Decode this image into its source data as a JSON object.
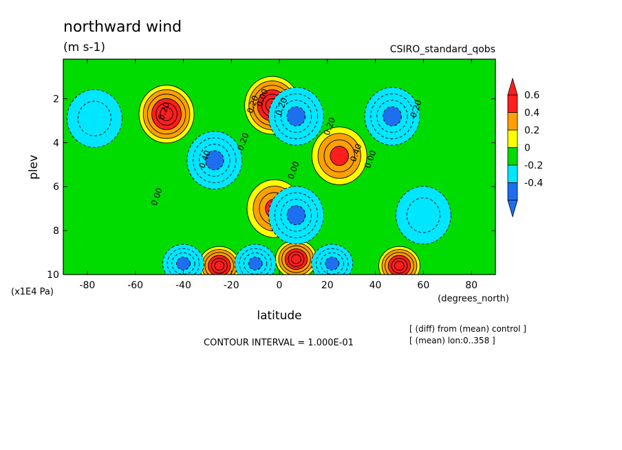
{
  "chart_data": {
    "type": "contour",
    "title": "northward wind",
    "units": "(m s-1)",
    "dataset_label": "CSIRO_standard_qobs",
    "xlabel": "latitude",
    "x_units": "(degrees_north)",
    "ylabel": "plev",
    "y_units": "(x1E4 Pa)",
    "xlim": [
      -90,
      90
    ],
    "ylim": [
      10,
      0.2
    ],
    "x_ticks": [
      -80,
      -60,
      -40,
      -20,
      0,
      20,
      40,
      60,
      80
    ],
    "y_ticks": [
      2,
      4,
      6,
      8,
      10
    ],
    "contour_interval_text": "CONTOUR INTERVAL = 1.000E-01",
    "footnotes": [
      "[ (diff) from (mean) control ]",
      "[ (mean) lon:0..358 ]"
    ],
    "colorbar": {
      "labels": [
        "0.6",
        "0.4",
        "0.2",
        "0",
        "-0.2",
        "-0.4"
      ],
      "levels": [
        -0.4,
        -0.2,
        0,
        0.2,
        0.4,
        0.6
      ],
      "colors": [
        "#1e6ef0",
        "#00e6ff",
        "#00dc00",
        "#ffff00",
        "#ffa000",
        "#ff1e1e"
      ]
    },
    "contour_labels": [
      {
        "text": "0.20",
        "lat": -47,
        "plev": 2.6
      },
      {
        "text": "0.40",
        "lat": -30,
        "plev": 4.8
      },
      {
        "text": "0.20",
        "lat": -14,
        "plev": 4.0
      },
      {
        "text": "0.00",
        "lat": -50,
        "plev": 6.5
      },
      {
        "text": "0.20",
        "lat": -10,
        "plev": 2.3
      },
      {
        "text": "0.00",
        "lat": -6,
        "plev": 2.0
      },
      {
        "text": "0.20",
        "lat": 2,
        "plev": 2.4
      },
      {
        "text": "0.20",
        "lat": 22,
        "plev": 3.3
      },
      {
        "text": "0.40",
        "lat": 33,
        "plev": 4.5
      },
      {
        "text": "0.00",
        "lat": 39,
        "plev": 4.8
      },
      {
        "text": "0.20",
        "lat": 58,
        "plev": 2.5
      },
      {
        "text": "0.00",
        "lat": 7,
        "plev": 5.3
      }
    ],
    "features": [
      {
        "kind": "max",
        "lat": -47,
        "plev": 2.7,
        "value": 0.6
      },
      {
        "kind": "max",
        "lat": 25,
        "plev": 4.6,
        "value": 0.4
      },
      {
        "kind": "min",
        "lat": -27,
        "plev": 4.8,
        "value": -0.4
      },
      {
        "kind": "min",
        "lat": 47,
        "plev": 2.8,
        "value": -0.4
      },
      {
        "kind": "max",
        "lat": -3,
        "plev": 2.3,
        "value": 0.6
      },
      {
        "kind": "min",
        "lat": 7,
        "plev": 2.8,
        "value": -0.4
      },
      {
        "kind": "max",
        "lat": -25,
        "plev": 9.6,
        "value": 0.6
      },
      {
        "kind": "min",
        "lat": -40,
        "plev": 9.5,
        "value": -0.4
      },
      {
        "kind": "min",
        "lat": -10,
        "plev": 9.5,
        "value": -0.4
      },
      {
        "kind": "max",
        "lat": 7,
        "plev": 9.3,
        "value": 0.6
      },
      {
        "kind": "min",
        "lat": 22,
        "plev": 9.5,
        "value": -0.4
      },
      {
        "kind": "max",
        "lat": 50,
        "plev": 9.6,
        "value": 0.6
      },
      {
        "kind": "max",
        "lat": -2,
        "plev": 7.0,
        "value": 0.4
      },
      {
        "kind": "min",
        "lat": 7,
        "plev": 7.3,
        "value": -0.4
      },
      {
        "kind": "min",
        "lat": 60,
        "plev": 7.3,
        "value": -0.2
      },
      {
        "kind": "min",
        "lat": -77,
        "plev": 2.9,
        "value": -0.2
      }
    ]
  }
}
